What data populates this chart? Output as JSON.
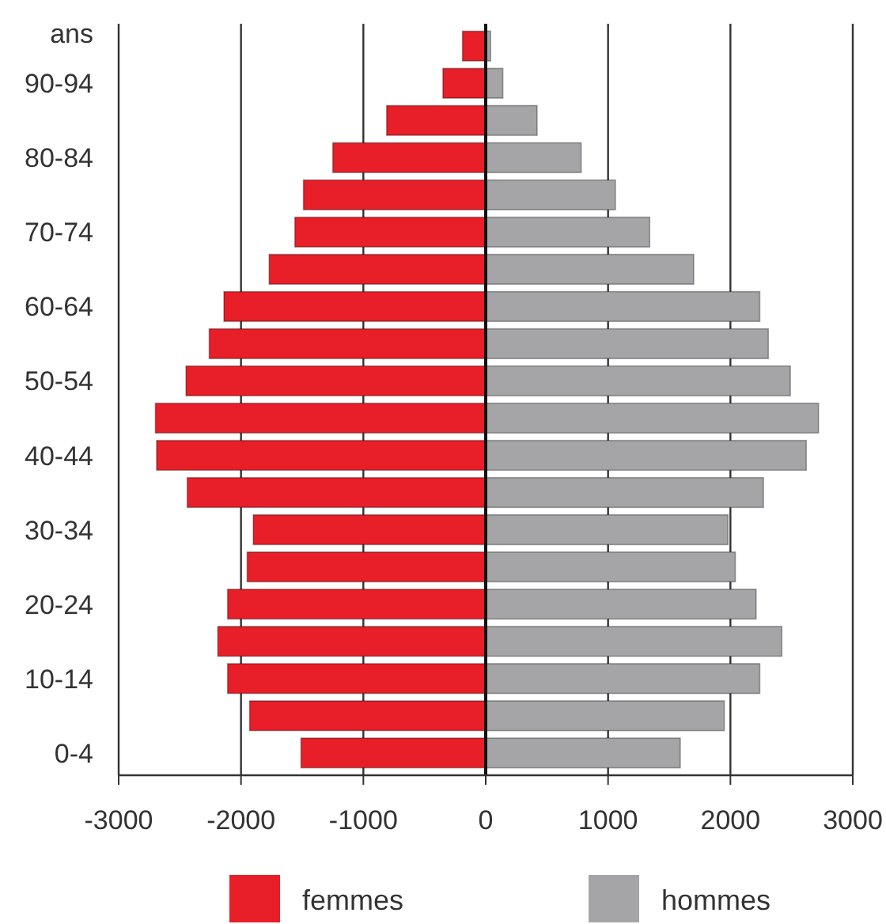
{
  "chart_data": {
    "type": "bar",
    "orientation": "horizontal",
    "stacked": true,
    "ylabel": "ans",
    "categories": [
      null,
      "90-94",
      null,
      "80-84",
      null,
      "70-74",
      null,
      "60-64",
      null,
      "50-54",
      null,
      "40-44",
      null,
      "30-34",
      null,
      "20-24",
      null,
      "10-14",
      null,
      "0-4"
    ],
    "series": [
      {
        "name": "femmes",
        "color": "#e81e28",
        "values": [
          -190,
          -350,
          -810,
          -1250,
          -1490,
          -1560,
          -1770,
          -2140,
          -2260,
          -2450,
          -2700,
          -2690,
          -2440,
          -1900,
          -1950,
          -2110,
          -2190,
          -2110,
          -1930,
          -1510
        ]
      },
      {
        "name": "hommes",
        "color": "#a5a5a8",
        "values": [
          40,
          140,
          420,
          780,
          1060,
          1340,
          1700,
          2240,
          2310,
          2490,
          2720,
          2620,
          2270,
          1980,
          2040,
          2210,
          2420,
          2240,
          1950,
          1590
        ]
      }
    ],
    "xlim": [
      -3000,
      3000
    ],
    "xticks": [
      -3000,
      -2000,
      -1000,
      0,
      1000,
      2000,
      3000
    ],
    "grid": "x",
    "legend": "bottom"
  }
}
